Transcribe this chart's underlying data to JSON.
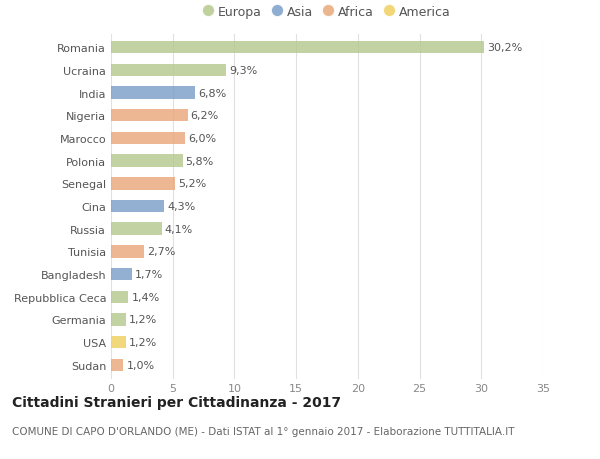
{
  "countries": [
    "Romania",
    "Ucraina",
    "India",
    "Nigeria",
    "Marocco",
    "Polonia",
    "Senegal",
    "Cina",
    "Russia",
    "Tunisia",
    "Bangladesh",
    "Repubblica Ceca",
    "Germania",
    "USA",
    "Sudan"
  ],
  "values": [
    30.2,
    9.3,
    6.8,
    6.2,
    6.0,
    5.8,
    5.2,
    4.3,
    4.1,
    2.7,
    1.7,
    1.4,
    1.2,
    1.2,
    1.0
  ],
  "labels": [
    "30,2%",
    "9,3%",
    "6,8%",
    "6,2%",
    "6,0%",
    "5,8%",
    "5,2%",
    "4,3%",
    "4,1%",
    "2,7%",
    "1,7%",
    "1,4%",
    "1,2%",
    "1,2%",
    "1,0%"
  ],
  "continents": [
    "Europa",
    "Europa",
    "Asia",
    "Africa",
    "Africa",
    "Europa",
    "Africa",
    "Asia",
    "Europa",
    "Africa",
    "Asia",
    "Europa",
    "Europa",
    "America",
    "Africa"
  ],
  "colors": {
    "Europa": "#b5c98e",
    "Asia": "#7b9ec9",
    "Africa": "#e8a87a",
    "America": "#f0d060"
  },
  "legend_order": [
    "Europa",
    "Asia",
    "Africa",
    "America"
  ],
  "bg_color": "#ffffff",
  "grid_color": "#e0e0e0",
  "title": "Cittadini Stranieri per Cittadinanza - 2017",
  "subtitle": "COMUNE DI CAPO D'ORLANDO (ME) - Dati ISTAT al 1° gennaio 2017 - Elaborazione TUTTITALIA.IT",
  "xlim": [
    0,
    35
  ],
  "xticks": [
    0,
    5,
    10,
    15,
    20,
    25,
    30,
    35
  ],
  "bar_height": 0.55,
  "label_fontsize": 8,
  "tick_fontsize": 8,
  "legend_fontsize": 9,
  "title_fontsize": 10,
  "subtitle_fontsize": 7.5
}
